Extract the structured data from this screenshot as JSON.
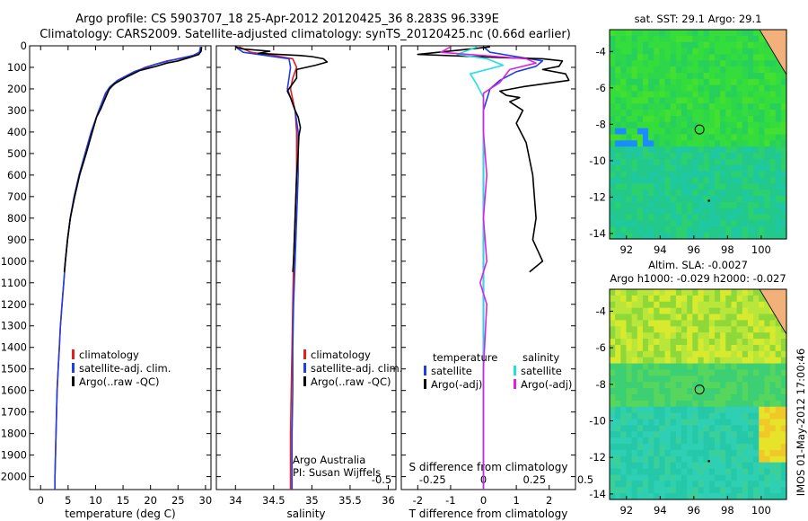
{
  "title_line1": "Argo profile: CS 5903707_18 25-Apr-2012 20120425_36 8.283S 96.339E",
  "title_line2": "Climatology: CARS2009. Satellite-adjusted climatology: synTS_20120425.nc (0.66d earlier)",
  "footer_vertical": "IMOS 01-May-2012 17:00:46",
  "colors": {
    "climatology": "#e02020",
    "satellite": "#1f3fe6",
    "argo": "#000000",
    "argo_sal_adj": "#e020e0",
    "sat_sal": "#20e0e0"
  },
  "chart_data": [
    {
      "type": "line",
      "id": "temperature",
      "xlabel": "temperature (deg C)",
      "ylabel": "",
      "xlim": [
        -2,
        31
      ],
      "ylim": [
        2060,
        0
      ],
      "xticks": [
        0,
        5,
        10,
        15,
        20,
        25,
        30
      ],
      "yticks": [
        0,
        100,
        200,
        300,
        400,
        500,
        600,
        700,
        800,
        900,
        1000,
        1100,
        1200,
        1300,
        1400,
        1500,
        1600,
        1700,
        1800,
        1900,
        2000
      ],
      "legend": [
        "climatology",
        "satellite-adj. clim.",
        "Argo(..raw -QC)"
      ],
      "legend_position": "lower-center",
      "series": [
        {
          "name": "climatology",
          "color": "#e02020",
          "points": [
            [
              29.1,
              5
            ],
            [
              28.9,
              30
            ],
            [
              27.5,
              50
            ],
            [
              23,
              70
            ],
            [
              19,
              100
            ],
            [
              15,
              150
            ],
            [
              13,
              185
            ],
            [
              12,
              220
            ],
            [
              10.6,
              300
            ],
            [
              9.2,
              400
            ],
            [
              8.1,
              500
            ],
            [
              7,
              600
            ],
            [
              6.1,
              700
            ],
            [
              5.4,
              800
            ],
            [
              4.9,
              900
            ],
            [
              4.5,
              1000
            ],
            [
              4.2,
              1100
            ],
            [
              3.9,
              1200
            ],
            [
              3.6,
              1300
            ],
            [
              3.4,
              1400
            ],
            [
              3.2,
              1500
            ],
            [
              3.0,
              1600
            ],
            [
              2.9,
              1700
            ],
            [
              2.8,
              1800
            ],
            [
              2.7,
              1900
            ],
            [
              2.6,
              2000
            ],
            [
              2.6,
              2060
            ]
          ]
        },
        {
          "name": "satellite-adj. clim.",
          "color": "#1f3fe6",
          "points": [
            [
              29.1,
              5
            ],
            [
              28.9,
              30
            ],
            [
              27.7,
              45
            ],
            [
              25,
              60
            ],
            [
              21,
              85
            ],
            [
              17,
              120
            ],
            [
              14,
              160
            ],
            [
              12.6,
              190
            ],
            [
              11.8,
              220
            ],
            [
              10.6,
              300
            ],
            [
              9.2,
              400
            ],
            [
              8.1,
              500
            ],
            [
              7,
              600
            ],
            [
              6.1,
              700
            ],
            [
              5.4,
              800
            ],
            [
              4.9,
              900
            ],
            [
              4.5,
              1000
            ],
            [
              4.2,
              1100
            ],
            [
              3.9,
              1200
            ],
            [
              3.6,
              1300
            ],
            [
              3.4,
              1400
            ],
            [
              3.2,
              1500
            ],
            [
              3.0,
              1600
            ],
            [
              2.9,
              1700
            ],
            [
              2.8,
              1800
            ],
            [
              2.7,
              1900
            ],
            [
              2.6,
              2000
            ],
            [
              2.6,
              2060
            ]
          ]
        },
        {
          "name": "Argo(..raw -QC)",
          "color": "#000000",
          "points": [
            [
              29.3,
              5
            ],
            [
              29.2,
              25
            ],
            [
              28.8,
              40
            ],
            [
              27,
              55
            ],
            [
              25,
              70
            ],
            [
              23,
              80
            ],
            [
              21,
              95
            ],
            [
              18,
              115
            ],
            [
              16,
              140
            ],
            [
              13.5,
              175
            ],
            [
              12.5,
              200
            ],
            [
              12,
              230
            ],
            [
              11.5,
              260
            ],
            [
              11,
              290
            ],
            [
              10.2,
              330
            ],
            [
              9.4,
              400
            ],
            [
              8.3,
              500
            ],
            [
              7.1,
              600
            ],
            [
              6.2,
              700
            ],
            [
              5.4,
              800
            ],
            [
              4.9,
              900
            ],
            [
              4.5,
              1000
            ],
            [
              4.3,
              1050
            ]
          ]
        }
      ]
    },
    {
      "type": "line",
      "id": "salinity",
      "xlabel": "salinity",
      "ylabel": "",
      "xlim": [
        33.75,
        36.1
      ],
      "ylim": [
        2060,
        0
      ],
      "xticks": [
        34,
        34.5,
        35,
        35.5,
        36
      ],
      "legend": [
        "climatology",
        "satellite-adj. clim.",
        "Argo(..raw -QC)"
      ],
      "legend_position": "lower-center",
      "annotations": [
        "Argo Australia",
        "PI: Susan Wijffels"
      ],
      "series": [
        {
          "name": "climatology",
          "color": "#e02020",
          "points": [
            [
              34.05,
              5
            ],
            [
              34.2,
              30
            ],
            [
              34.5,
              45
            ],
            [
              34.75,
              60
            ],
            [
              34.8,
              100
            ],
            [
              34.75,
              150
            ],
            [
              34.72,
              200
            ],
            [
              34.78,
              300
            ],
            [
              34.8,
              400
            ],
            [
              34.8,
              600
            ],
            [
              34.78,
              800
            ],
            [
              34.76,
              1000
            ],
            [
              34.75,
              1200
            ],
            [
              34.74,
              1400
            ],
            [
              34.73,
              1600
            ],
            [
              34.72,
              1800
            ],
            [
              34.72,
              2000
            ],
            [
              34.72,
              2060
            ]
          ]
        },
        {
          "name": "satellite-adj. clim.",
          "color": "#1f3fe6",
          "points": [
            [
              34.0,
              5
            ],
            [
              34.1,
              30
            ],
            [
              34.4,
              45
            ],
            [
              34.7,
              60
            ],
            [
              34.72,
              100
            ],
            [
              34.7,
              150
            ],
            [
              34.68,
              200
            ],
            [
              34.78,
              300
            ],
            [
              34.82,
              400
            ],
            [
              34.82,
              600
            ],
            [
              34.8,
              800
            ],
            [
              34.78,
              1000
            ],
            [
              34.76,
              1200
            ],
            [
              34.75,
              1400
            ],
            [
              34.75,
              1600
            ],
            [
              34.74,
              1800
            ],
            [
              34.74,
              2000
            ],
            [
              34.74,
              2060
            ]
          ]
        },
        {
          "name": "Argo(..raw -QC)",
          "color": "#000000",
          "points": [
            [
              34.0,
              5
            ],
            [
              34.1,
              15
            ],
            [
              34.45,
              25
            ],
            [
              34.3,
              35
            ],
            [
              34.85,
              45
            ],
            [
              35.0,
              50
            ],
            [
              35.15,
              60
            ],
            [
              35.2,
              75
            ],
            [
              35.05,
              90
            ],
            [
              34.8,
              110
            ],
            [
              34.8,
              150
            ],
            [
              34.68,
              210
            ],
            [
              34.72,
              240
            ],
            [
              34.78,
              300
            ],
            [
              34.82,
              330
            ],
            [
              34.85,
              380
            ],
            [
              34.83,
              420
            ],
            [
              34.82,
              500
            ],
            [
              34.8,
              600
            ],
            [
              34.78,
              800
            ],
            [
              34.76,
              1000
            ],
            [
              34.75,
              1050
            ]
          ]
        }
      ]
    },
    {
      "type": "line",
      "id": "difference",
      "xlabel": "T difference from climatology",
      "xlabel_top": "S difference from climatology",
      "xlim": [
        -2.5,
        2.8
      ],
      "ylim": [
        2060,
        0
      ],
      "xticks": [
        -2,
        -1,
        0,
        1,
        2
      ],
      "xticks_top": [
        -0.5,
        -0.25,
        0,
        0.25,
        0.5
      ],
      "legend": [
        "temperature",
        "satellite",
        "Argo(-adj)",
        "salinity",
        "satellite",
        "Argo(-adj)"
      ],
      "legend_position": "lower-center",
      "series": [
        {
          "name": "satellite",
          "color": "#1f3fe6",
          "points": [
            [
              0.0,
              5
            ],
            [
              0.2,
              30
            ],
            [
              1.0,
              50
            ],
            [
              1.8,
              70
            ],
            [
              1.6,
              95
            ],
            [
              1.0,
              120
            ],
            [
              0.5,
              160
            ],
            [
              0.2,
              200
            ],
            [
              0.0,
              300
            ],
            [
              0.0,
              2060
            ]
          ]
        },
        {
          "name": "Argo(-adj)",
          "color": "#000000",
          "points": [
            [
              0.2,
              5
            ],
            [
              -2.0,
              40
            ],
            [
              0.6,
              55
            ],
            [
              1.8,
              60
            ],
            [
              2.4,
              70
            ],
            [
              2.3,
              95
            ],
            [
              1.8,
              110
            ],
            [
              2.5,
              130
            ],
            [
              2.6,
              160
            ],
            [
              1.2,
              190
            ],
            [
              0.5,
              210
            ],
            [
              0.7,
              230
            ],
            [
              1.1,
              240
            ],
            [
              0.8,
              260
            ],
            [
              1.2,
              300
            ],
            [
              1.0,
              360
            ],
            [
              1.3,
              450
            ],
            [
              1.5,
              600
            ],
            [
              1.6,
              800
            ],
            [
              1.5,
              900
            ],
            [
              1.8,
              1000
            ],
            [
              1.4,
              1050
            ]
          ]
        },
        {
          "name": "satellite",
          "color": "#20e0e0",
          "points": [
            [
              -0.2,
              5
            ],
            [
              -0.8,
              40
            ],
            [
              0.1,
              60
            ],
            [
              0.6,
              90
            ],
            [
              -0.4,
              130
            ],
            [
              -0.2,
              180
            ],
            [
              0.0,
              240
            ],
            [
              0.0,
              2060
            ]
          ]
        },
        {
          "name": "Argo(-adj)",
          "color": "#e020e0",
          "points": [
            [
              -1.0,
              5
            ],
            [
              -1.3,
              30
            ],
            [
              0.0,
              45
            ],
            [
              1.3,
              60
            ],
            [
              1.6,
              80
            ],
            [
              0.8,
              110
            ],
            [
              0.5,
              170
            ],
            [
              0.0,
              220
            ],
            [
              0.0,
              400
            ],
            [
              0.1,
              600
            ],
            [
              0.0,
              800
            ],
            [
              0.1,
              1000
            ],
            [
              -0.1,
              1100
            ],
            [
              0.1,
              1200
            ],
            [
              0.0,
              1500
            ],
            [
              0.0,
              2060
            ]
          ]
        }
      ]
    },
    {
      "type": "heatmap",
      "id": "sst_map",
      "title": "sat. SST: 29.1  Argo: 29.1",
      "xlim": [
        91,
        101.5
      ],
      "ylim": [
        -14.3,
        -2.8
      ],
      "xticks": [
        92,
        94,
        96,
        98,
        100
      ],
      "yticks": [
        -4,
        -6,
        -8,
        -10,
        -12,
        -14
      ],
      "marker": {
        "lon": 96.339,
        "lat": -8.283
      }
    },
    {
      "type": "heatmap",
      "id": "sla_map",
      "title": "Altim. SLA: -0.0027",
      "subtitle": "Argo h1000: -0.029 h2000: -0.027",
      "xlim": [
        91,
        101.5
      ],
      "ylim": [
        -14.3,
        -2.8
      ],
      "xticks": [
        92,
        94,
        96,
        98,
        100
      ],
      "yticks": [
        -4,
        -6,
        -8,
        -10,
        -12,
        -14
      ],
      "marker": {
        "lon": 96.339,
        "lat": -8.283
      }
    }
  ]
}
